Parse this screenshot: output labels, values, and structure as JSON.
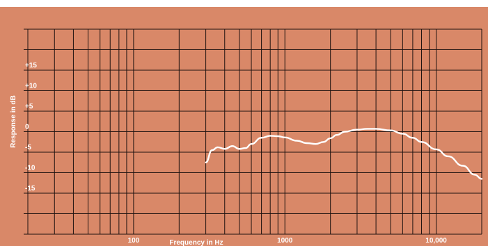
{
  "chart_data": {
    "type": "line",
    "xlabel": "Frequency in Hz",
    "ylabel": "Response in dB",
    "x_scale": "log",
    "xlim": [
      20,
      20000
    ],
    "ylim": [
      -25,
      25
    ],
    "x_ticks": [
      {
        "value": 100,
        "label": "100"
      },
      {
        "value": 1000,
        "label": "1000"
      },
      {
        "value": 10000,
        "label": "10,000"
      }
    ],
    "y_ticks": [
      {
        "value": 15,
        "label": "+15"
      },
      {
        "value": 10,
        "label": "+10"
      },
      {
        "value": 5,
        "label": "+5"
      },
      {
        "value": 0,
        "label": "0"
      },
      {
        "value": -5,
        "label": "-5"
      },
      {
        "value": -10,
        "label": "-10"
      },
      {
        "value": -15,
        "label": "-15"
      }
    ],
    "grid": true,
    "colors": {
      "background": "#d98868",
      "grid": "#1e1210",
      "curve": "#ffffff",
      "text": "#ffffff"
    },
    "series": [
      {
        "x": [
          300,
          330,
          360,
          400,
          450,
          500,
          550,
          600,
          700,
          800,
          900,
          1000,
          1200,
          1400,
          1600,
          1800,
          2000,
          2200,
          2500,
          3000,
          3500,
          4000,
          5000,
          6000,
          7000,
          8000,
          10000,
          12000,
          15000,
          18000,
          20000
        ],
        "y": [
          -7.5,
          -4.5,
          -3.8,
          -4.2,
          -3.5,
          -4.2,
          -4.0,
          -3.0,
          -1.5,
          -1.0,
          -1.1,
          -1.4,
          -2.2,
          -2.8,
          -3.0,
          -2.5,
          -1.6,
          -0.8,
          0.0,
          0.5,
          0.7,
          0.7,
          0.3,
          -0.5,
          -1.5,
          -2.5,
          -4.3,
          -6.0,
          -8.3,
          -10.5,
          -11.5
        ]
      }
    ]
  }
}
